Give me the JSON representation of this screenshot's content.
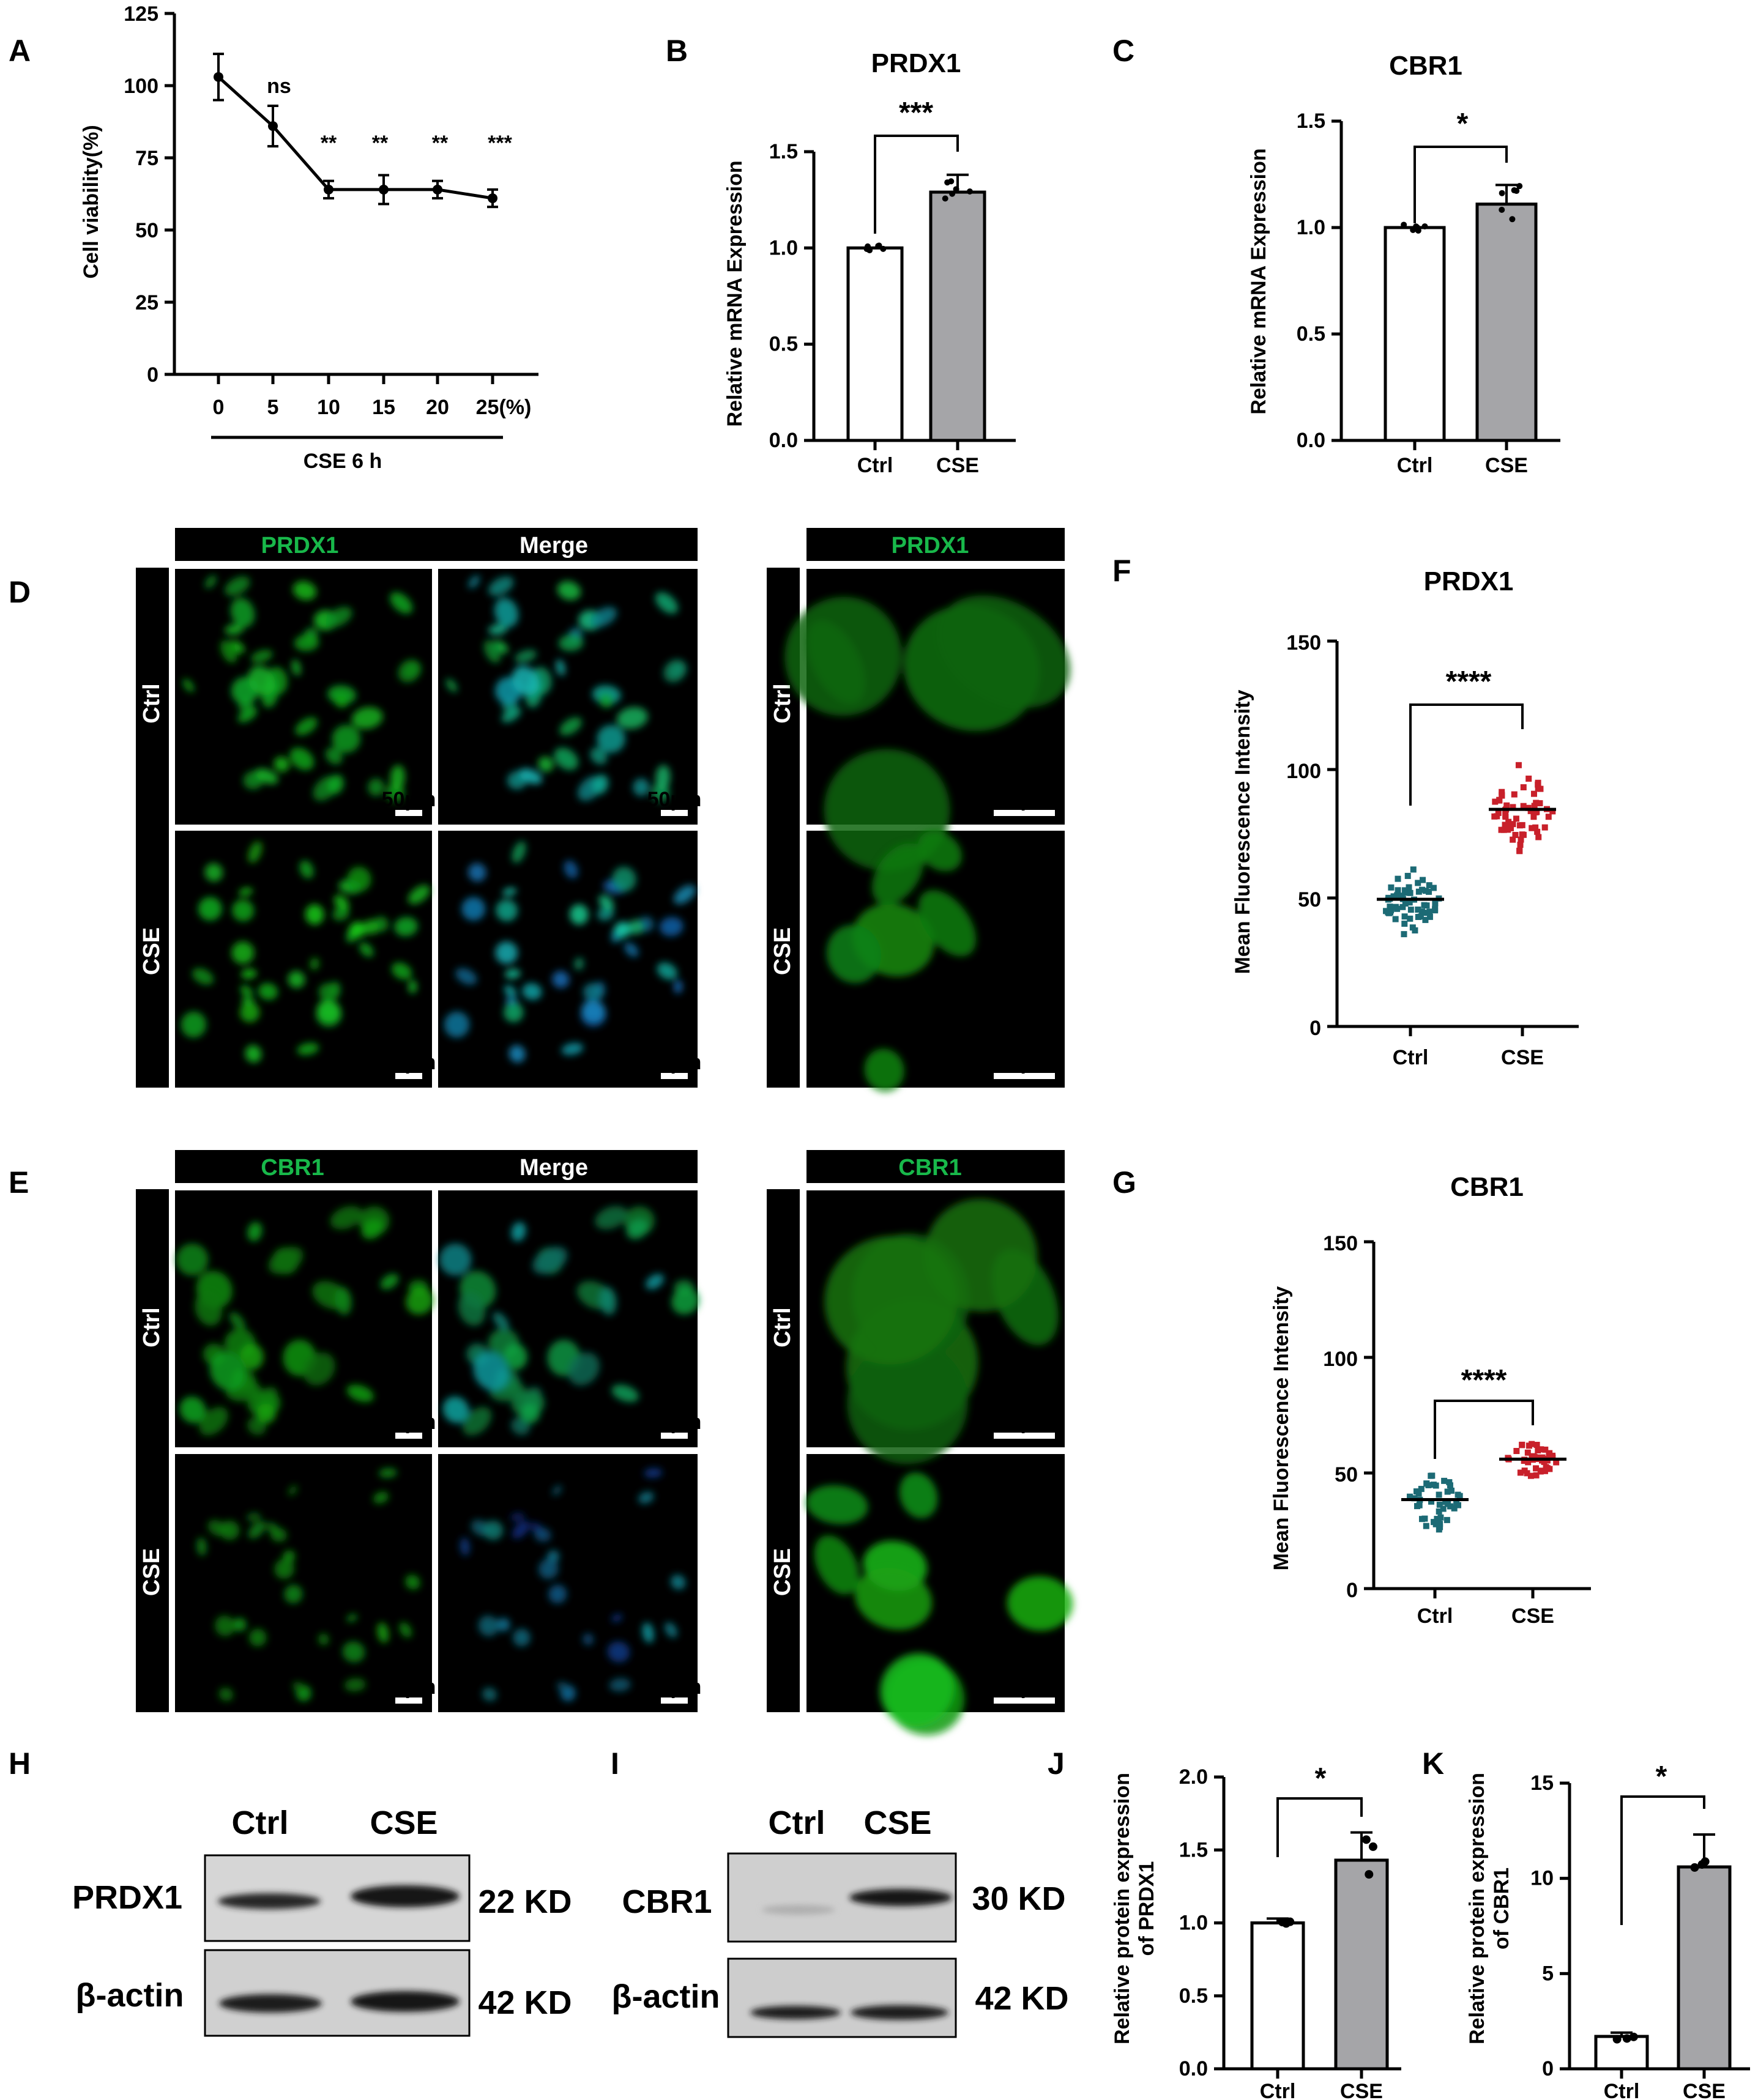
{
  "panels": {
    "A": "A",
    "B": "B",
    "C": "C",
    "D": "D",
    "E": "E",
    "F": "F",
    "G": "G",
    "H": "H",
    "I": "I",
    "J": "J",
    "K": "K"
  },
  "colors": {
    "white_bar": "#ffffff",
    "cse_bar": "#a5a5a8",
    "ctrl_dots": "#1c6a75",
    "cse_dots": "#c8202a",
    "green_text": "#18b84a"
  },
  "chart_a": {
    "ylabel": "Cell viability(%)",
    "x_ticks": [
      "0",
      "5",
      "10",
      "15",
      "20",
      "25(%)"
    ],
    "y_ticks": [
      "0",
      "25",
      "50",
      "75",
      "100",
      "125"
    ],
    "group_label": "CSE 6 h",
    "sig": [
      "ns",
      "**",
      "**",
      "**",
      "***"
    ]
  },
  "chart_b": {
    "title": "PRDX1",
    "ylabel": "Relative mRNA Expression",
    "y_ticks": [
      "0.0",
      "0.5",
      "1.0",
      "1.5"
    ],
    "cats": [
      "Ctrl",
      "CSE"
    ],
    "sig": "***"
  },
  "chart_c": {
    "title": "CBR1",
    "ylabel": "Relative mRNA Expression",
    "y_ticks": [
      "0.0",
      "0.5",
      "1.0",
      "1.5"
    ],
    "cats": [
      "Ctrl",
      "CSE"
    ],
    "sig": "*"
  },
  "chart_f": {
    "title": "PRDX1",
    "ylabel": "Mean Fluorescence Intensity",
    "y_ticks": [
      "0",
      "50",
      "100",
      "150"
    ],
    "cats": [
      "Ctrl",
      "CSE"
    ],
    "sig": "****"
  },
  "chart_g": {
    "title": "CBR1",
    "ylabel": "Mean Fluorescence Intensity",
    "y_ticks": [
      "0",
      "50",
      "100",
      "150"
    ],
    "cats": [
      "Ctrl",
      "CSE"
    ],
    "sig": "****"
  },
  "chart_j": {
    "ylabel1": "Relative protein expression",
    "ylabel2": "of PRDX1",
    "y_ticks": [
      "0.0",
      "0.5",
      "1.0",
      "1.5",
      "2.0"
    ],
    "cats": [
      "Ctrl",
      "CSE"
    ],
    "sig": "*"
  },
  "chart_k": {
    "ylabel1": "Relative protein expression",
    "ylabel2": "of CBR1",
    "y_ticks": [
      "0",
      "5",
      "10",
      "15"
    ],
    "cats": [
      "Ctrl",
      "CSE"
    ],
    "sig": "*"
  },
  "micro_d": {
    "h1": "PRDX1",
    "h2": "Merge",
    "h3": "PRDX1",
    "row1": "Ctrl",
    "row2": "CSE",
    "scale": "50μm"
  },
  "micro_e": {
    "h1": "CBR1",
    "h2": "Merge",
    "h3": "CBR1",
    "row1": "Ctrl",
    "row2": "CSE",
    "scale": "50μm"
  },
  "blot_h": {
    "ctrl": "Ctrl",
    "cse": "CSE",
    "protein": "PRDX1",
    "loading": "β-actin",
    "kd1": "22 KD",
    "kd2": "42 KD"
  },
  "blot_i": {
    "ctrl": "Ctrl",
    "cse": "CSE",
    "protein": "CBR1",
    "loading": "β-actin",
    "kd1": "30 KD",
    "kd2": "42 KD"
  },
  "chart_data": [
    {
      "type": "line",
      "x": [
        0,
        5,
        10,
        15,
        20,
        25
      ],
      "y": [
        103,
        86,
        64,
        64,
        64,
        61
      ],
      "err": [
        8,
        7,
        3,
        5,
        3,
        3
      ],
      "ylim": [
        0,
        125
      ],
      "xlabel": "CSE 6 h",
      "ylabel": "Cell viability(%)"
    },
    {
      "type": "bar",
      "title": "PRDX1",
      "categories": [
        "Ctrl",
        "CSE"
      ],
      "values": [
        1.0,
        1.29
      ],
      "err": [
        0.0,
        0.09
      ],
      "ylim": [
        0,
        1.5
      ],
      "ylabel": "Relative mRNA Expression"
    },
    {
      "type": "bar",
      "title": "CBR1",
      "categories": [
        "Ctrl",
        "CSE"
      ],
      "values": [
        1.0,
        1.11
      ],
      "err": [
        0.0,
        0.09
      ],
      "ylim": [
        0,
        1.5
      ],
      "ylabel": "Relative mRNA Expression"
    },
    {
      "type": "scatter",
      "title": "PRDX1",
      "categories": [
        "Ctrl",
        "CSE"
      ],
      "means": [
        49.5,
        84.5
      ],
      "ylim": [
        0,
        150
      ],
      "ylabel": "Mean Fluorescence Intensity"
    },
    {
      "type": "scatter",
      "title": "CBR1",
      "categories": [
        "Ctrl",
        "CSE"
      ],
      "means": [
        38.5,
        56
      ],
      "ylim": [
        0,
        150
      ],
      "ylabel": "Mean Fluorescence Intensity"
    },
    {
      "type": "bar",
      "categories": [
        "Ctrl",
        "CSE"
      ],
      "values": [
        1.0,
        1.43
      ],
      "err": [
        0.03,
        0.19
      ],
      "ylim": [
        0,
        2.0
      ],
      "ylabel": "Relative protein expression of PRDX1"
    },
    {
      "type": "bar",
      "categories": [
        "Ctrl",
        "CSE"
      ],
      "values": [
        1.7,
        10.6
      ],
      "err": [
        0.2,
        1.7
      ],
      "ylim": [
        0,
        15
      ],
      "ylabel": "Relative protein expression of CBR1"
    }
  ]
}
